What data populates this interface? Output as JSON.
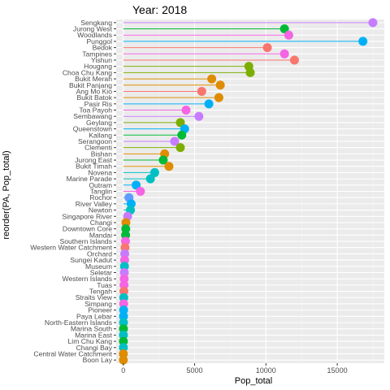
{
  "chart_data": {
    "type": "lollipop",
    "title": "Year: 2018",
    "xlabel": "Pop_total",
    "ylabel": "reorder(PA, Pop_total)",
    "xlim": [
      -500,
      18300
    ],
    "xticks": [
      0,
      5000,
      10000,
      15000
    ],
    "xtick_labels": [
      "0",
      "5000",
      "10000",
      "15000"
    ],
    "grid": true,
    "legend": "none",
    "categories": [
      "Sengkang",
      "Jurong West",
      "Woodlands",
      "Punggol",
      "Bedok",
      "Tampines",
      "Yishun",
      "Hougang",
      "Choa Chu Kang",
      "Bukit Merah",
      "Bukit Panjang",
      "Ang Mo Kio",
      "Bukit Batok",
      "Pasir Ris",
      "Toa Payoh",
      "Sembawang",
      "Geylang",
      "Queenstown",
      "Kallang",
      "Serangoon",
      "Clementi",
      "Bishan",
      "Jurong East",
      "Bukit Timah",
      "Novena",
      "Marine Parade",
      "Outram",
      "Tanglin",
      "Rochor",
      "River Valley",
      "Newton",
      "Singapore River",
      "Changi",
      "Downtown Core",
      "Mandai",
      "Southern Islands",
      "Western Water Catchment",
      "Orchard",
      "Sungei Kadut",
      "Museum",
      "Seletar",
      "Western Islands",
      "Tuas",
      "Tengah",
      "Straits View",
      "Simpang",
      "Pioneer",
      "Paya Lebar",
      "North-Eastern Islands",
      "Marina South",
      "Marina East",
      "Lim Chu Kang",
      "Changi Bay",
      "Central Water Catchment",
      "Boon Lay"
    ],
    "values": [
      17500,
      11300,
      11600,
      16800,
      10100,
      11300,
      12000,
      8800,
      8900,
      6200,
      6800,
      5500,
      6700,
      6000,
      4400,
      5300,
      4000,
      4300,
      4100,
      3600,
      4000,
      2900,
      2800,
      3200,
      2200,
      1900,
      900,
      1200,
      400,
      550,
      500,
      300,
      180,
      170,
      160,
      150,
      120,
      100,
      90,
      80,
      70,
      60,
      50,
      40,
      30,
      25,
      20,
      15,
      12,
      10,
      8,
      6,
      5,
      4,
      3
    ],
    "colors": [
      "#c77cff",
      "#00ba38",
      "#f564e3",
      "#00b0f6",
      "#f8766d",
      "#f564e3",
      "#f8766d",
      "#7cae00",
      "#7cae00",
      "#de8c00",
      "#de8c00",
      "#f8766d",
      "#de8c00",
      "#00b0f6",
      "#f564e3",
      "#c77cff",
      "#7cae00",
      "#00b0f6",
      "#00ba38",
      "#c77cff",
      "#7cae00",
      "#de8c00",
      "#00ba38",
      "#de8c00",
      "#00bfc4",
      "#00bfc4",
      "#00b0f6",
      "#f564e3",
      "#619cff",
      "#00b0f6",
      "#00bfc4",
      "#c77cff",
      "#de8c00",
      "#00ba38",
      "#00ba38",
      "#f564e3",
      "#f8766d",
      "#c77cff",
      "#f564e3",
      "#00bfc4",
      "#c77cff",
      "#f564e3",
      "#f564e3",
      "#f8766d",
      "#00bfc4",
      "#f564e3",
      "#00b0f6",
      "#00b0f6",
      "#00bfc4",
      "#00ba38",
      "#00bfc4",
      "#00ba38",
      "#00bfc4",
      "#de8c00",
      "#de8c00"
    ]
  }
}
